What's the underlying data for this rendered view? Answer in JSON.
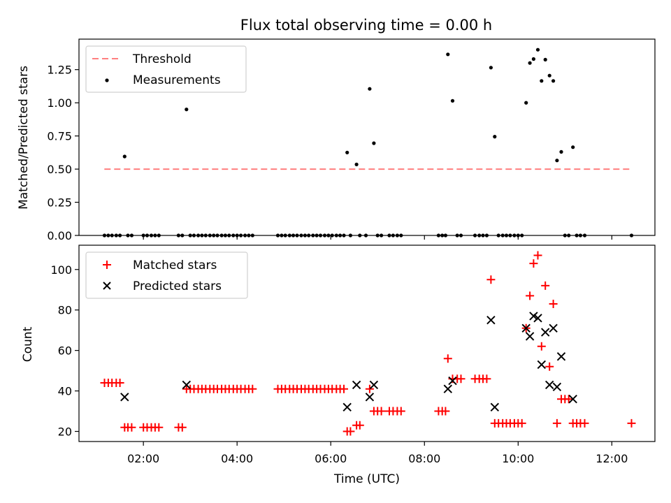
{
  "chart_data": [
    {
      "type": "scatter",
      "title": "Flux total observing time = 0.00 h",
      "xlabel": "",
      "ylabel": "Matched/Predicted stars",
      "ylim": [
        0,
        1.48
      ],
      "yticks": [
        0.0,
        0.25,
        0.5,
        0.75,
        1.0,
        1.25
      ],
      "ytick_labels": [
        "0.00",
        "0.25",
        "0.50",
        "0.75",
        "1.00",
        "1.25"
      ],
      "legend": {
        "position": "upper-left",
        "entries": [
          "Threshold",
          "Measurements"
        ]
      },
      "threshold": {
        "name": "Threshold",
        "value": 0.5,
        "x_start": 1.1667,
        "x_end": 12.4167,
        "color": "#ff7f7f"
      },
      "series": [
        {
          "name": "Measurements",
          "marker": "dot",
          "color": "#000000",
          "points": [
            [
              1.6,
              0.595
            ],
            [
              2.92,
              0.95
            ],
            [
              6.35,
              0.625
            ],
            [
              6.55,
              0.535
            ],
            [
              6.83,
              1.105
            ],
            [
              6.92,
              0.695
            ],
            [
              8.5,
              1.365
            ],
            [
              8.6,
              1.015
            ],
            [
              9.42,
              1.265
            ],
            [
              9.5,
              0.745
            ],
            [
              10.17,
              1.0
            ],
            [
              10.25,
              1.3
            ],
            [
              10.33,
              1.33
            ],
            [
              10.42,
              1.4
            ],
            [
              10.5,
              1.165
            ],
            [
              10.58,
              1.325
            ],
            [
              10.67,
              1.205
            ],
            [
              10.75,
              1.165
            ],
            [
              10.83,
              0.565
            ],
            [
              10.92,
              0.63
            ],
            [
              11.17,
              0.665
            ],
            [
              1.17,
              0
            ],
            [
              1.25,
              0
            ],
            [
              1.33,
              0
            ],
            [
              1.42,
              0
            ],
            [
              1.5,
              0
            ],
            [
              1.67,
              0
            ],
            [
              1.75,
              0
            ],
            [
              2.0,
              0
            ],
            [
              2.08,
              0
            ],
            [
              2.17,
              0
            ],
            [
              2.25,
              0
            ],
            [
              2.33,
              0
            ],
            [
              2.75,
              0
            ],
            [
              2.83,
              0
            ],
            [
              3.0,
              0
            ],
            [
              3.08,
              0
            ],
            [
              3.17,
              0
            ],
            [
              3.25,
              0
            ],
            [
              3.33,
              0
            ],
            [
              3.42,
              0
            ],
            [
              3.5,
              0
            ],
            [
              3.58,
              0
            ],
            [
              3.67,
              0
            ],
            [
              3.75,
              0
            ],
            [
              3.83,
              0
            ],
            [
              3.92,
              0
            ],
            [
              4.0,
              0
            ],
            [
              4.08,
              0
            ],
            [
              4.17,
              0
            ],
            [
              4.25,
              0
            ],
            [
              4.33,
              0
            ],
            [
              4.87,
              0
            ],
            [
              4.95,
              0
            ],
            [
              5.03,
              0
            ],
            [
              5.12,
              0
            ],
            [
              5.2,
              0
            ],
            [
              5.28,
              0
            ],
            [
              5.37,
              0
            ],
            [
              5.45,
              0
            ],
            [
              5.53,
              0
            ],
            [
              5.62,
              0
            ],
            [
              5.7,
              0
            ],
            [
              5.78,
              0
            ],
            [
              5.87,
              0
            ],
            [
              5.95,
              0
            ],
            [
              6.03,
              0
            ],
            [
              6.12,
              0
            ],
            [
              6.2,
              0
            ],
            [
              6.28,
              0
            ],
            [
              6.42,
              0
            ],
            [
              6.62,
              0
            ],
            [
              6.75,
              0
            ],
            [
              7.0,
              0
            ],
            [
              7.08,
              0
            ],
            [
              7.25,
              0
            ],
            [
              7.33,
              0
            ],
            [
              7.42,
              0
            ],
            [
              7.5,
              0
            ],
            [
              8.3,
              0
            ],
            [
              8.38,
              0
            ],
            [
              8.45,
              0
            ],
            [
              8.7,
              0
            ],
            [
              8.78,
              0
            ],
            [
              9.08,
              0
            ],
            [
              9.17,
              0
            ],
            [
              9.25,
              0
            ],
            [
              9.33,
              0
            ],
            [
              9.58,
              0
            ],
            [
              9.67,
              0
            ],
            [
              9.75,
              0
            ],
            [
              9.83,
              0
            ],
            [
              9.92,
              0
            ],
            [
              10.0,
              0
            ],
            [
              10.08,
              0
            ],
            [
              11.0,
              0
            ],
            [
              11.08,
              0
            ],
            [
              11.25,
              0
            ],
            [
              11.33,
              0
            ],
            [
              11.42,
              0
            ],
            [
              12.42,
              0
            ]
          ]
        }
      ]
    },
    {
      "type": "scatter",
      "title": "",
      "xlabel": "Time (UTC)",
      "ylabel": "Count",
      "xlim": [
        0.625,
        12.92
      ],
      "ylim": [
        15,
        112
      ],
      "xticks": [
        2,
        4,
        6,
        8,
        10,
        12
      ],
      "xtick_labels": [
        "02:00",
        "04:00",
        "06:00",
        "08:00",
        "10:00",
        "12:00"
      ],
      "yticks": [
        20,
        40,
        60,
        80,
        100
      ],
      "ytick_labels": [
        "20",
        "40",
        "60",
        "80",
        "100"
      ],
      "legend": {
        "position": "upper-left",
        "entries": [
          "Matched stars",
          "Predicted stars"
        ]
      },
      "series": [
        {
          "name": "Matched stars",
          "marker": "plus",
          "color": "#ff0000",
          "points": [
            [
              1.17,
              44
            ],
            [
              1.25,
              44
            ],
            [
              1.33,
              44
            ],
            [
              1.42,
              44
            ],
            [
              1.5,
              44
            ],
            [
              1.6,
              22
            ],
            [
              1.67,
              22
            ],
            [
              1.75,
              22
            ],
            [
              2.0,
              22
            ],
            [
              2.08,
              22
            ],
            [
              2.17,
              22
            ],
            [
              2.25,
              22
            ],
            [
              2.33,
              22
            ],
            [
              2.75,
              22
            ],
            [
              2.83,
              22
            ],
            [
              2.92,
              41
            ],
            [
              3.0,
              41
            ],
            [
              3.08,
              41
            ],
            [
              3.17,
              41
            ],
            [
              3.25,
              41
            ],
            [
              3.33,
              41
            ],
            [
              3.42,
              41
            ],
            [
              3.5,
              41
            ],
            [
              3.58,
              41
            ],
            [
              3.67,
              41
            ],
            [
              3.75,
              41
            ],
            [
              3.83,
              41
            ],
            [
              3.92,
              41
            ],
            [
              4.0,
              41
            ],
            [
              4.08,
              41
            ],
            [
              4.17,
              41
            ],
            [
              4.25,
              41
            ],
            [
              4.33,
              41
            ],
            [
              4.87,
              41
            ],
            [
              4.95,
              41
            ],
            [
              5.03,
              41
            ],
            [
              5.12,
              41
            ],
            [
              5.2,
              41
            ],
            [
              5.28,
              41
            ],
            [
              5.37,
              41
            ],
            [
              5.45,
              41
            ],
            [
              5.53,
              41
            ],
            [
              5.62,
              41
            ],
            [
              5.7,
              41
            ],
            [
              5.78,
              41
            ],
            [
              5.87,
              41
            ],
            [
              5.95,
              41
            ],
            [
              6.03,
              41
            ],
            [
              6.12,
              41
            ],
            [
              6.2,
              41
            ],
            [
              6.28,
              41
            ],
            [
              6.35,
              20
            ],
            [
              6.42,
              20
            ],
            [
              6.55,
              23
            ],
            [
              6.62,
              23
            ],
            [
              6.83,
              41
            ],
            [
              6.92,
              30
            ],
            [
              7.0,
              30
            ],
            [
              7.08,
              30
            ],
            [
              7.25,
              30
            ],
            [
              7.33,
              30
            ],
            [
              7.42,
              30
            ],
            [
              7.5,
              30
            ],
            [
              8.3,
              30
            ],
            [
              8.38,
              30
            ],
            [
              8.45,
              30
            ],
            [
              8.5,
              56
            ],
            [
              8.6,
              46
            ],
            [
              8.7,
              46
            ],
            [
              8.78,
              46
            ],
            [
              9.08,
              46
            ],
            [
              9.17,
              46
            ],
            [
              9.25,
              46
            ],
            [
              9.33,
              46
            ],
            [
              9.42,
              95
            ],
            [
              9.5,
              24
            ],
            [
              9.58,
              24
            ],
            [
              9.67,
              24
            ],
            [
              9.75,
              24
            ],
            [
              9.83,
              24
            ],
            [
              9.92,
              24
            ],
            [
              10.0,
              24
            ],
            [
              10.08,
              24
            ],
            [
              10.17,
              71
            ],
            [
              10.25,
              87
            ],
            [
              10.33,
              103
            ],
            [
              10.42,
              107
            ],
            [
              10.5,
              62
            ],
            [
              10.58,
              92
            ],
            [
              10.67,
              52
            ],
            [
              10.75,
              83
            ],
            [
              10.83,
              24
            ],
            [
              10.92,
              36
            ],
            [
              11.0,
              36
            ],
            [
              11.08,
              36
            ],
            [
              11.17,
              24
            ],
            [
              11.25,
              24
            ],
            [
              11.33,
              24
            ],
            [
              11.42,
              24
            ],
            [
              12.42,
              24
            ]
          ]
        },
        {
          "name": "Predicted stars",
          "marker": "x",
          "color": "#000000",
          "points": [
            [
              1.6,
              37
            ],
            [
              2.92,
              43
            ],
            [
              6.35,
              32
            ],
            [
              6.55,
              43
            ],
            [
              6.83,
              37
            ],
            [
              6.92,
              43
            ],
            [
              8.5,
              41
            ],
            [
              8.6,
              45
            ],
            [
              9.42,
              75
            ],
            [
              9.5,
              32
            ],
            [
              10.17,
              71
            ],
            [
              10.25,
              67
            ],
            [
              10.33,
              77
            ],
            [
              10.42,
              76
            ],
            [
              10.5,
              53
            ],
            [
              10.58,
              69
            ],
            [
              10.67,
              43
            ],
            [
              10.75,
              71
            ],
            [
              10.83,
              42
            ],
            [
              10.92,
              57
            ],
            [
              11.17,
              36
            ]
          ]
        }
      ]
    }
  ]
}
